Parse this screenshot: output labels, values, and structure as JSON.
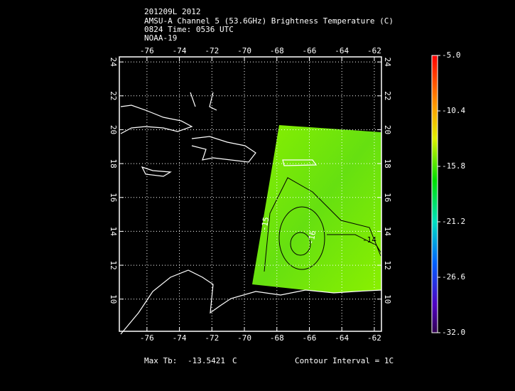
{
  "header": {
    "lines": [
      "201209L 2012",
      "AMSU-A Channel 5 (53.6GHz) Brightness Temperature (C)",
      "0824 Time: 0536 UTC",
      "NOAA-19"
    ]
  },
  "map": {
    "xlim": [
      -77.7,
      -61.56
    ],
    "ylim": [
      8.1,
      24.3
    ],
    "xticks": [
      -76,
      -74,
      -72,
      -70,
      -68,
      -66,
      -64,
      -62
    ],
    "yticks": [
      10,
      12,
      14,
      16,
      18,
      20,
      22,
      24
    ]
  },
  "contour_labels": [
    "-15",
    "-16",
    "-14"
  ],
  "colorbar": {
    "lim": [
      -32,
      -5
    ],
    "ticks": [
      {
        "value": -5,
        "label": "-5.0"
      },
      {
        "value": -10.4,
        "label": "-10.4"
      },
      {
        "value": -15.8,
        "label": "-15.8"
      },
      {
        "value": -21.2,
        "label": "-21.2"
      },
      {
        "value": -26.6,
        "label": "-26.6"
      },
      {
        "value": -32,
        "label": "-32.0"
      }
    ]
  },
  "footer": {
    "max_label": "Max Tb:",
    "max_value": "-13.5421",
    "unit": "C",
    "contour_interval": "Contour Interval = 1C"
  }
}
